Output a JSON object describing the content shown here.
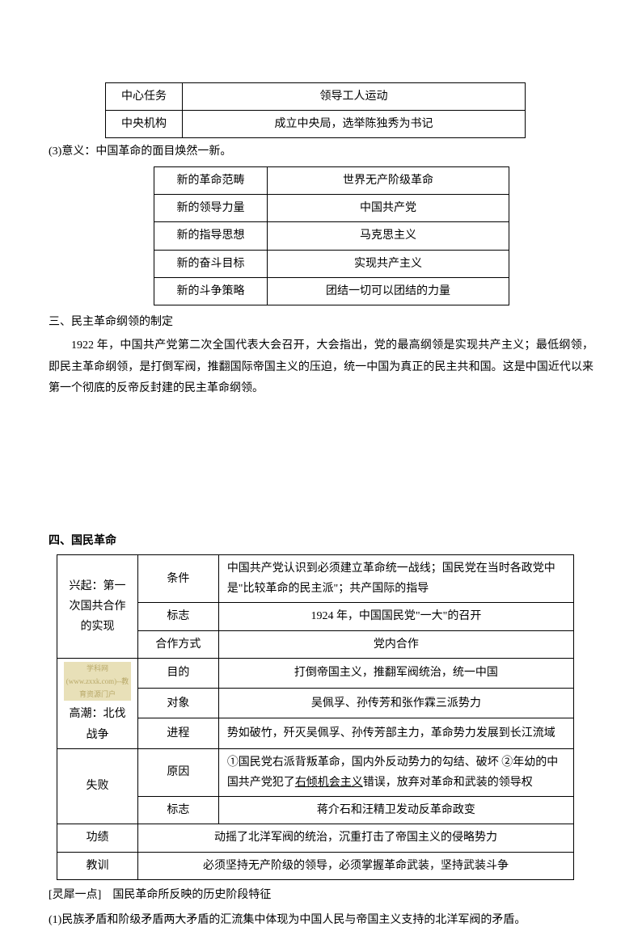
{
  "table1": {
    "rows": [
      [
        "中心任务",
        "领导工人运动"
      ],
      [
        "中央机构",
        "成立中央局，选举陈独秀为书记"
      ]
    ]
  },
  "meaning_line": "(3)意义：中国革命的面目焕然一新。",
  "table2": {
    "rows": [
      [
        "新的革命范畴",
        "世界无产阶级革命"
      ],
      [
        "新的领导力量",
        "中国共产党"
      ],
      [
        "新的指导思想",
        "马克思主义"
      ],
      [
        "新的奋斗目标",
        "实现共产主义"
      ],
      [
        "新的斗争策略",
        "团结一切可以团结的力量"
      ]
    ]
  },
  "section3": {
    "heading": "三、民主革命纲领的制定",
    "body": "1922 年，中国共产党第二次全国代表大会召开，大会指出，党的最高纲领是实现共产主义；最低纲领，即民主革命纲领，是打倒军阀，推翻国际帝国主义的压迫，统一中国为真正的民主共和国。这是中国近代以来第一个彻底的反帝反封建的民主革命纲领。"
  },
  "section4": {
    "heading": "四、国民革命",
    "rise_label": "兴起：第一次国共合作的实现",
    "rise_rows": [
      [
        "条件",
        "中国共产党认识到必须建立革命统一战线；国民党在当时各政党中是\"比较革命的民主派\"；共产国际的指导"
      ],
      [
        "标志",
        "1924 年，中国国民党\"一大\"的召开"
      ],
      [
        "合作方式",
        "党内合作"
      ]
    ],
    "climax_label": "高潮：北伐战争",
    "watermark": "学科网(www.zxxk.com)--教育资源门户",
    "climax_rows": [
      [
        "目的",
        "打倒帝国主义，推翻军阀统治，统一中国"
      ],
      [
        "对象",
        "吴佩孚、孙传芳和张作霖三派势力"
      ],
      [
        "进程",
        "势如破竹，歼灭吴佩孚、孙传芳部主力，革命势力发展到长江流域"
      ]
    ],
    "failure_label": "失败",
    "failure_rows": [
      [
        "原因",
        "①国民党右派背叛革命，国内外反动势力的勾结、破坏 ②年幼的中国共产党犯了右倾机会主义错误，放弃对革命和武装的领导权"
      ],
      [
        "标志",
        "蒋介石和汪精卫发动反革命政变"
      ]
    ],
    "gongji_label": "功绩",
    "gongji_text": "动摇了北洋军阀的统治，沉重打击了帝国主义的侵略势力",
    "jiaoxun_label": "教训",
    "jiaoxun_text": "必须坚持无产阶级的领导，必须掌握革命武装，坚持武装斗争"
  },
  "lingxi": {
    "label": "[灵犀一点]",
    "title": "国民革命所反映的历史阶段特征",
    "item1": "(1)民族矛盾和阶级矛盾两大矛盾的汇流集中体现为中国人民与帝国主义支持的北洋军阀的矛盾。"
  }
}
